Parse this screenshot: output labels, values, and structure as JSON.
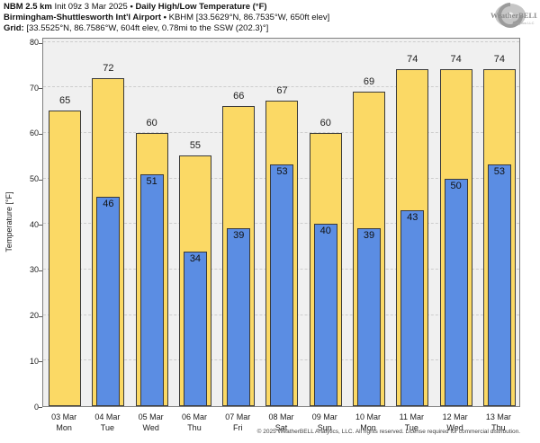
{
  "header": {
    "line1": {
      "product": "NBM 2.5 km",
      "init": "Init 09z 3 Mar 2025",
      "sep": "•",
      "title": "Daily High/Low Temperature (°F)"
    },
    "line2": {
      "station_name": "Birmingham-Shuttlesworth Int'l Airport",
      "sep": "•",
      "station_info": "KBHM [33.5629°N, 86.7535°W, 650ft elev]"
    },
    "line3": {
      "label": "Grid:",
      "info": "[33.5525°N, 86.7586°W, 604ft elev, 0.78mi to the SSW (202.3)°]"
    }
  },
  "logo": {
    "name": "WeatherBELL",
    "sub": "Analytics LLC"
  },
  "chart_data": {
    "type": "bar",
    "title": "Daily High/Low Temperature (°F)",
    "ylabel": "Temperature [°F]",
    "ylim": [
      0,
      80
    ],
    "yticks": [
      0,
      10,
      20,
      30,
      40,
      50,
      60,
      70,
      80
    ],
    "grid": "horizontal-dashed",
    "legend": "none",
    "categories": [
      {
        "date": "03 Mar",
        "day": "Mon"
      },
      {
        "date": "04 Mar",
        "day": "Tue"
      },
      {
        "date": "05 Mar",
        "day": "Wed"
      },
      {
        "date": "06 Mar",
        "day": "Thu"
      },
      {
        "date": "07 Mar",
        "day": "Fri"
      },
      {
        "date": "08 Mar",
        "day": "Sat"
      },
      {
        "date": "09 Mar",
        "day": "Sun"
      },
      {
        "date": "10 Mar",
        "day": "Mon"
      },
      {
        "date": "11 Mar",
        "day": "Tue"
      },
      {
        "date": "12 Mar",
        "day": "Wed"
      },
      {
        "date": "13 Mar",
        "day": "Thu"
      }
    ],
    "series": [
      {
        "name": "Daily High",
        "color": "#fbd965",
        "values": [
          65,
          72,
          60,
          55,
          66,
          67,
          60,
          69,
          74,
          74,
          74
        ]
      },
      {
        "name": "Daily Low",
        "color": "#5b8de3",
        "values": [
          null,
          46,
          51,
          34,
          39,
          53,
          40,
          39,
          43,
          50,
          53
        ]
      }
    ]
  },
  "footer": {
    "copyright": "© 2025 WeatherBELL Analytics, LLC. All rights reserved. License required for commercial distribution."
  }
}
